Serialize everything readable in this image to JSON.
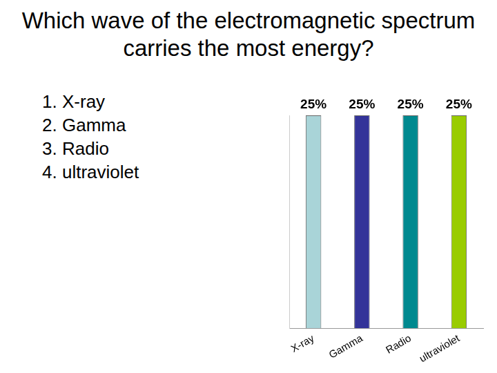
{
  "title": "Which wave of the electromagnetic spectrum carries the most energy?",
  "list": [
    "X-ray",
    "Gamma",
    "Radio",
    "ultraviolet"
  ],
  "chart_data": {
    "type": "bar",
    "categories": [
      "X-ray",
      "Gamma",
      "Radio",
      "ultraviolet"
    ],
    "values": [
      25,
      25,
      25,
      25
    ],
    "value_labels": [
      "25%",
      "25%",
      "25%",
      "25%"
    ],
    "colors": [
      "#a9d4d8",
      "#333399",
      "#00898f",
      "#99cc00"
    ],
    "ylim": [
      0,
      25
    ],
    "yticks": [
      0,
      25
    ],
    "grid": false,
    "data_labels": true,
    "tick_labels": "x"
  }
}
